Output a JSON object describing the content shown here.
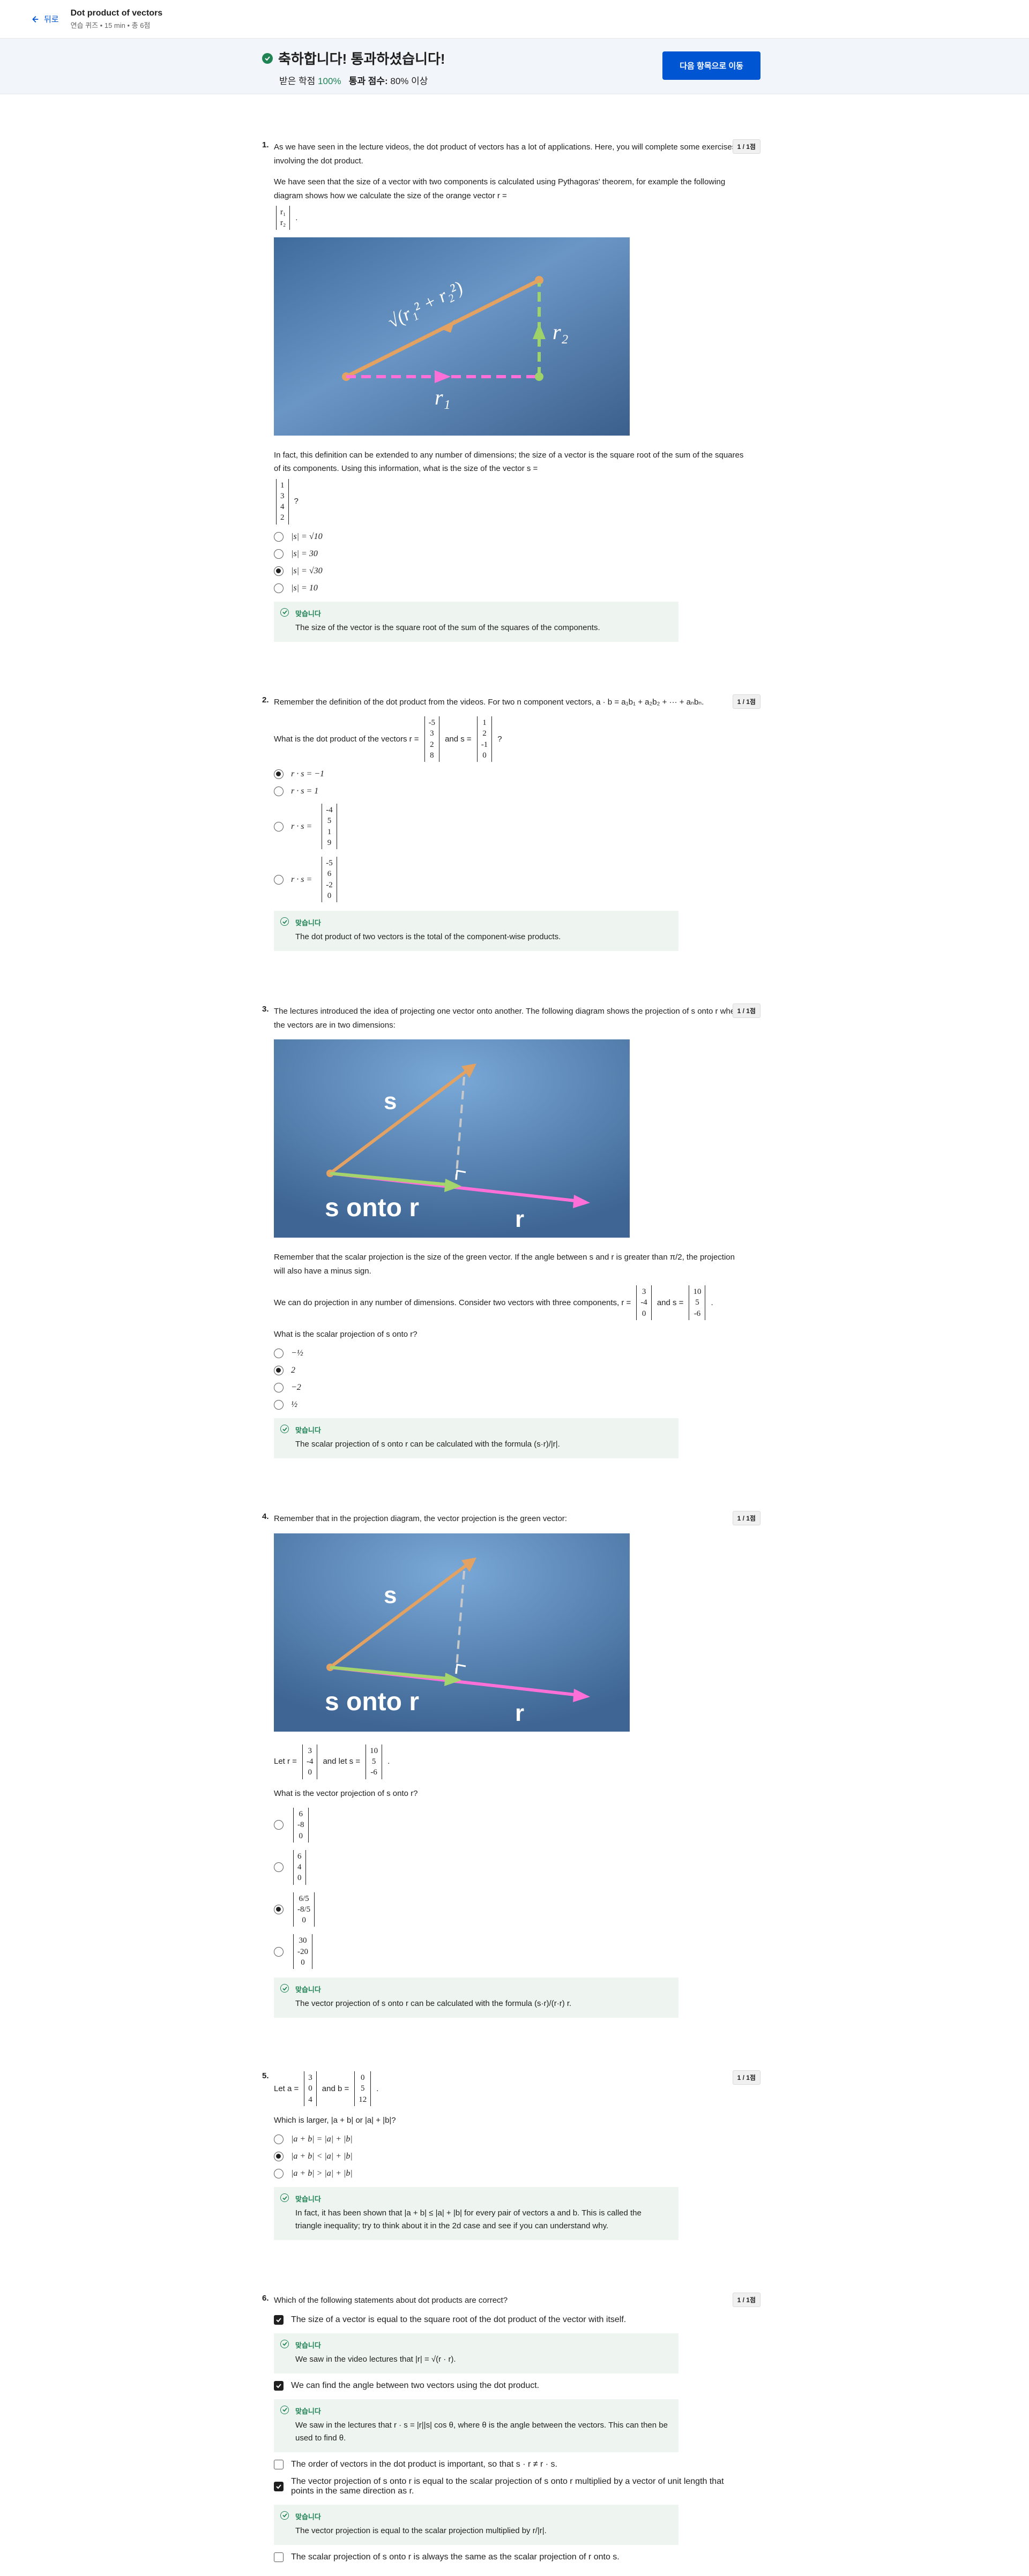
{
  "header": {
    "back_label": "뒤로",
    "title": "Dot product of vectors",
    "subtitle": "연습 퀴즈 • 15 min • 총 6점"
  },
  "banner": {
    "title": "축하합니다! 통과하셨습니다!",
    "grade_label": "받은 학점",
    "grade_value": "100%",
    "pass_label": "통과 점수:",
    "pass_value": "80% 이상",
    "next_button": "다음 항목으로 이동"
  },
  "feedback_label": "맞습니다",
  "points": "1 / 1점",
  "q1": {
    "num": "1.",
    "p1": "As we have seen in the lecture videos, the dot product of vectors has a lot of applications. Here, you will complete some exercises involving the dot product.",
    "p2": "We have seen that the size of a vector with two components is calculated using Pythagoras' theorem, for example the following diagram shows how we calculate the size of the orange vector r =",
    "p3": "In fact, this definition can be extended to any number of dimensions; the size of a vector is the square root of the sum of the squares of its components. Using this information, what is the size of the vector s =",
    "r_comp": [
      "r₁",
      "r₂"
    ],
    "s_comp": [
      "1",
      "3",
      "4",
      "2"
    ],
    "options": [
      "|s| = √10",
      "|s| = 30",
      "|s| = √30",
      "|s| = 10"
    ],
    "feedback": "The size of the vector is the square root of the sum of the squares of the components."
  },
  "q2": {
    "num": "2.",
    "p1": "Remember the definition of the dot product from the videos. For two n component vectors, a · b = a₁b₁ + a₂b₂ + ··· + aₙbₙ.",
    "p2a": "What is the dot product of the vectors r =",
    "p2b": "and s =",
    "r_comp": [
      "-5",
      "3",
      "2",
      "8"
    ],
    "s_comp": [
      "1",
      "2",
      "-1",
      "0"
    ],
    "options": [
      "r · s = −1",
      "r · s = 1",
      "r · s =",
      "r · s ="
    ],
    "opt3_vec": [
      "-4",
      "5",
      "1",
      "9"
    ],
    "opt4_vec": [
      "-5",
      "6",
      "-2",
      "0"
    ],
    "feedback": "The dot product of two vectors is the total of the component-wise products."
  },
  "q3": {
    "num": "3.",
    "p1": "The lectures introduced the idea of projecting one vector onto another. The following diagram shows the projection of s onto r when the vectors are in two dimensions:",
    "p2": "Remember that the scalar projection is the size of the green vector. If the angle between s and r is greater than π/2, the projection will also have a minus sign.",
    "p3": "We can do projection in any number of dimensions. Consider two vectors with three components, r =",
    "p3b": "and s =",
    "r_comp": [
      "3",
      "-4",
      "0"
    ],
    "s_comp": [
      "10",
      "5",
      "-6"
    ],
    "ask": "What is the scalar projection of s onto r?",
    "options": [
      "−½",
      "2",
      "−2",
      "½"
    ],
    "feedback": "The scalar projection of s onto r can be calculated with the formula (s·r)/|r|."
  },
  "q4": {
    "num": "4.",
    "p1": "Remember that in the projection diagram, the vector projection is the green vector:",
    "p2a": "Let r =",
    "p2b": "and let s =",
    "r_comp": [
      "3",
      "-4",
      "0"
    ],
    "s_comp": [
      "10",
      "5",
      "-6"
    ],
    "ask": "What is the vector projection of s onto r?",
    "opt_vecs": [
      [
        "6",
        "-8",
        "0"
      ],
      [
        "6",
        "4",
        "0"
      ],
      [
        "6/5",
        "-8/5",
        "0"
      ],
      [
        "30",
        "-20",
        "0"
      ]
    ],
    "feedback": "The vector projection of s onto r can be calculated with the formula (s·r)/(r·r) r."
  },
  "q5": {
    "num": "5.",
    "p1a": "Let a =",
    "p1b": "and b =",
    "a_comp": [
      "3",
      "0",
      "4"
    ],
    "b_comp": [
      "0",
      "5",
      "12"
    ],
    "ask": "Which is larger, |a + b| or |a| + |b|?",
    "options": [
      "|a + b| = |a| + |b|",
      "|a + b| < |a| + |b|",
      "|a + b| > |a| + |b|"
    ],
    "feedback": "In fact, it has been shown that |a + b| ≤ |a| + |b| for every pair of vectors a and b. This is called the triangle inequality; try to think about it in the 2d case and see if you can understand why."
  },
  "q6": {
    "num": "6.",
    "ask": "Which of the following statements about dot products are correct?",
    "options": [
      "The size of a vector is equal to the square root of the dot product of the vector with itself.",
      "We can find the angle between two vectors using the dot product.",
      "The order of vectors in the dot product is important, so that s · r ≠ r · s.",
      "The vector projection of s onto r is equal to the scalar projection of s onto r multiplied by a vector of unit length that points in the same direction as r.",
      "The scalar projection of s onto r is always the same as the scalar projection of r onto s."
    ],
    "feedbacks": [
      "We saw in the video lectures that |r| = √(r · r).",
      "We saw in the lectures that r · s = |r||s| cos θ, where θ is the angle between the vectors. This can then be used to find θ.",
      "The vector projection is equal to the scalar projection multiplied by r/|r|."
    ]
  },
  "diagram": {
    "r1": "r₁",
    "r2": "r₂",
    "hyp": "√(r₁² + r₂²)",
    "s": "s",
    "r": "r",
    "caption": "s onto r"
  }
}
